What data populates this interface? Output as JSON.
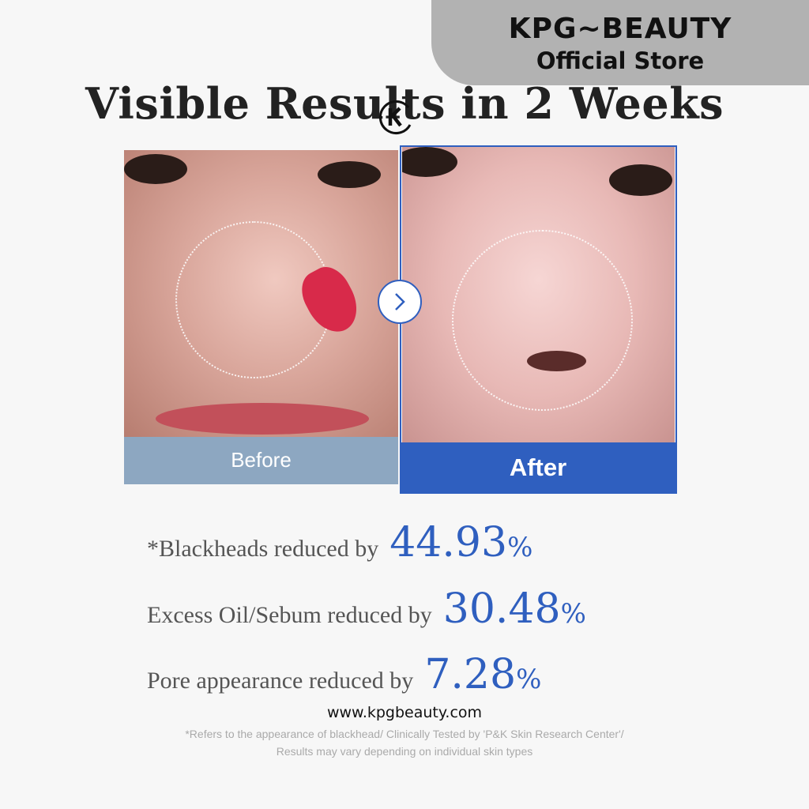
{
  "banner": {
    "brand": "KPG~BEAUTY",
    "subtitle": "Official Store",
    "color": "#b2b2b2"
  },
  "title": "Visible Results in 2 Weeks",
  "logo": {
    "letter": "K"
  },
  "comparison": {
    "before_label": "Before",
    "after_label": "After",
    "before_color": "#8da7c1",
    "after_color": "#2f5fbf",
    "arrow_icon": "chevron-right-icon"
  },
  "stats": [
    {
      "label": "*Blackheads reduced by",
      "value": "44.93",
      "unit": "%"
    },
    {
      "label": "Excess Oil/Sebum reduced by",
      "value": "30.48",
      "unit": "%"
    },
    {
      "label": "Pore appearance reduced by",
      "value": "7.28",
      "unit": "%"
    }
  ],
  "website": "www.kpgbeauty.com",
  "footnote": {
    "line1": "*Refers to the appearance of blackhead/ Clinically Tested by 'P&K Skin Research Center'/",
    "line2": "Results may vary depending on individual skin types"
  }
}
